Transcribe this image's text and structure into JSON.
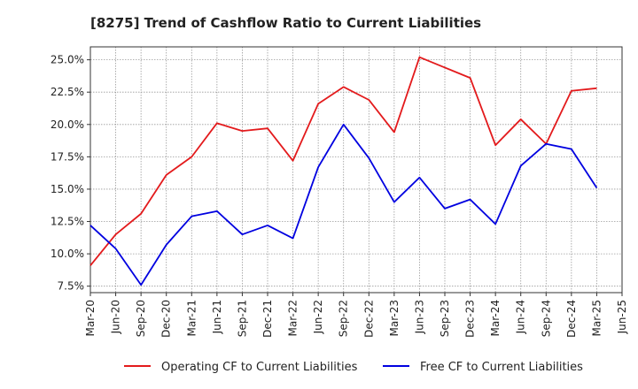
{
  "chart_data": {
    "type": "line",
    "title": "[8275]  Trend of Cashflow Ratio to Current Liabilities",
    "xlabel": "",
    "ylabel": "",
    "x_ticks": [
      "Mar-20",
      "Jun-20",
      "Sep-20",
      "Dec-20",
      "Mar-21",
      "Jun-21",
      "Sep-21",
      "Dec-21",
      "Mar-22",
      "Jun-22",
      "Sep-22",
      "Dec-22",
      "Mar-23",
      "Jun-23",
      "Sep-23",
      "Dec-23",
      "Mar-24",
      "Jun-24",
      "Sep-24",
      "Dec-24",
      "Mar-25",
      "Jun-25"
    ],
    "y_ticks": [
      "7.5%",
      "10.0%",
      "12.5%",
      "15.0%",
      "17.5%",
      "20.0%",
      "22.5%",
      "25.0%"
    ],
    "y_tick_values": [
      7.5,
      10.0,
      12.5,
      15.0,
      17.5,
      20.0,
      22.5,
      25.0
    ],
    "ylim": [
      7.0,
      26.0
    ],
    "grid": true,
    "legend_position": "bottom",
    "categories": [
      "Mar-20",
      "Jun-20",
      "Sep-20",
      "Dec-20",
      "Mar-21",
      "Jun-21",
      "Sep-21",
      "Dec-21",
      "Mar-22",
      "Jun-22",
      "Sep-22",
      "Dec-22",
      "Mar-23",
      "Jun-23",
      "Sep-23",
      "Dec-23",
      "Mar-24",
      "Jun-24",
      "Sep-24",
      "Dec-24",
      "Mar-25"
    ],
    "series": [
      {
        "name": "Operating CF to Current Liabilities",
        "color": "#e31a1c",
        "values": [
          9.1,
          11.5,
          13.1,
          16.1,
          17.5,
          20.1,
          19.5,
          19.7,
          17.2,
          21.6,
          22.9,
          21.9,
          19.4,
          25.2,
          24.4,
          23.6,
          18.4,
          20.4,
          18.5,
          22.6,
          22.8
        ]
      },
      {
        "name": "Free CF to Current Liabilities",
        "color": "#0000e0",
        "values": [
          12.2,
          10.4,
          7.6,
          10.7,
          12.9,
          13.3,
          11.5,
          12.2,
          11.2,
          16.7,
          20.0,
          17.4,
          14.0,
          15.9,
          13.5,
          14.2,
          12.3,
          16.8,
          18.5,
          18.1,
          15.1
        ]
      }
    ]
  }
}
